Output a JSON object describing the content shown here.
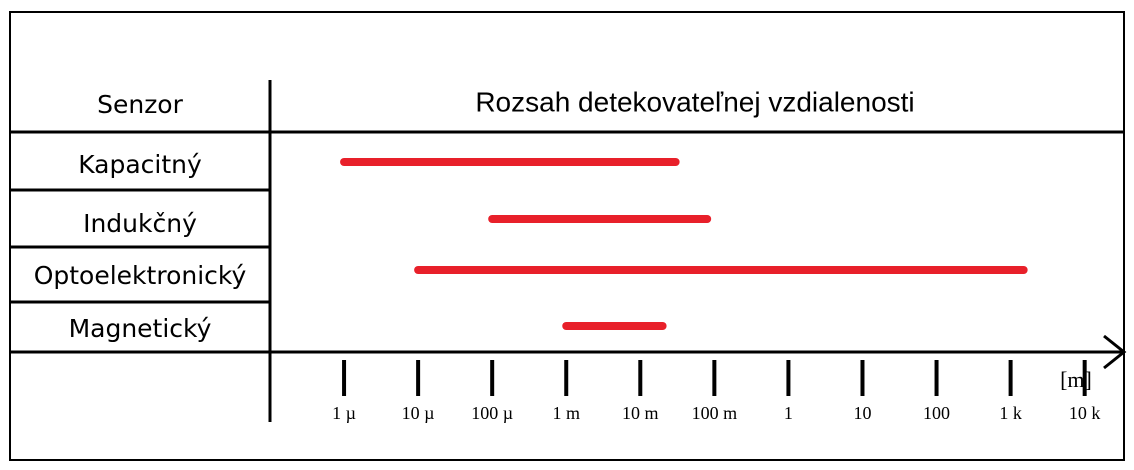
{
  "chart_data": {
    "type": "range",
    "category_header": "Senzor",
    "title": "Rozsah detekovateľnej vzdialenosti",
    "categories": [
      "Kapacitný",
      "Indukčný",
      "Optoelektronický",
      "Magnetický"
    ],
    "values": [
      [
        1e-06,
        0.03
      ],
      [
        0.0001,
        0.08
      ],
      [
        1e-05,
        1500
      ],
      [
        0.001,
        0.02
      ]
    ],
    "color": "#e8202a",
    "x_unit": "[m]",
    "xscale": "log",
    "xlim": [
      1e-07,
      30000
    ],
    "xticks": [
      {
        "value": 1e-06,
        "label": "1 µ"
      },
      {
        "value": 1e-05,
        "label": "10 µ"
      },
      {
        "value": 0.0001,
        "label": "100 µ"
      },
      {
        "value": 0.001,
        "label": "1 m"
      },
      {
        "value": 0.01,
        "label": "10 m"
      },
      {
        "value": 0.1,
        "label": "100 m"
      },
      1,
      10,
      100,
      {
        "value": 1000,
        "label": "1 k"
      },
      {
        "value": 10000,
        "label": "10 k"
      }
    ]
  }
}
